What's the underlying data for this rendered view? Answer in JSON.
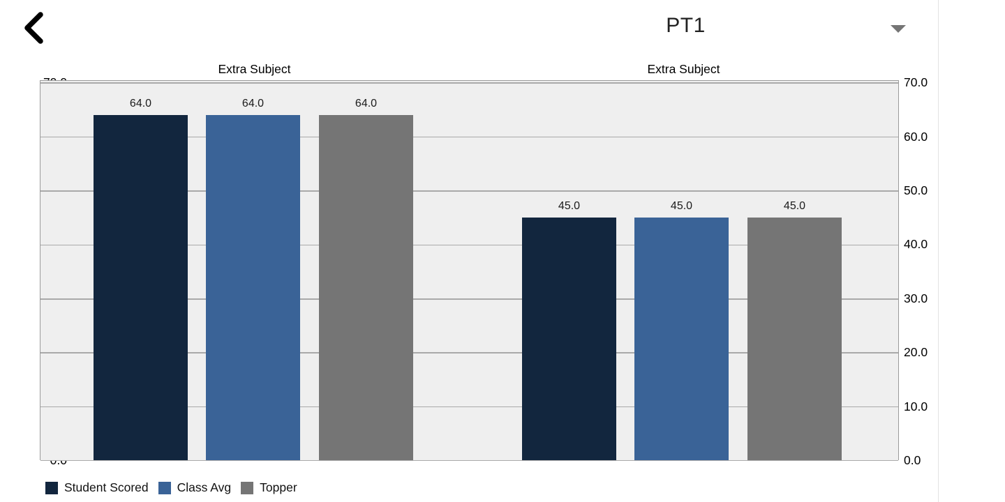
{
  "header": {
    "back_button": "back",
    "exam_selector": {
      "value": "PT1"
    }
  },
  "axis": {
    "ylim": [
      0,
      70.4
    ],
    "yticks": [
      {
        "value": 70,
        "label": "70.0"
      },
      {
        "value": 60,
        "label": "60.0"
      },
      {
        "value": 50,
        "label": "50.0"
      },
      {
        "value": 40,
        "label": "40.0"
      },
      {
        "value": 30,
        "label": "30.0"
      },
      {
        "value": 20,
        "label": "20.0"
      },
      {
        "value": 10,
        "label": "10.0"
      },
      {
        "value": 0,
        "label": "0.0"
      }
    ]
  },
  "chart_data": [
    {
      "type": "bar",
      "title": "Extra Subject",
      "categories": [
        "Student Scored",
        "Class Avg",
        "Topper"
      ],
      "values": [
        64.0,
        64.0,
        64.0
      ],
      "value_labels": [
        "64.0",
        "64.0",
        "64.0"
      ],
      "colors": [
        "#12263e",
        "#3a6397",
        "#757575"
      ],
      "xlabel": "",
      "ylabel": "",
      "ylim": [
        0,
        70.4
      ],
      "grid": true,
      "legend_position": "bottom-left"
    },
    {
      "type": "bar",
      "title": "Extra Subject",
      "categories": [
        "Student Scored",
        "Class Avg",
        "Topper"
      ],
      "values": [
        45.0,
        45.0,
        45.0
      ],
      "value_labels": [
        "45.0",
        "45.0",
        "45.0"
      ],
      "colors": [
        "#12263e",
        "#3a6397",
        "#757575"
      ],
      "xlabel": "",
      "ylabel": "",
      "ylim": [
        0,
        70.4
      ],
      "grid": true,
      "legend_position": "bottom-left"
    }
  ],
  "legend": {
    "items": [
      {
        "label": "Student Scored",
        "color": "#12263e"
      },
      {
        "label": "Class Avg",
        "color": "#3a6397"
      },
      {
        "label": "Topper",
        "color": "#757575"
      }
    ]
  },
  "nav_rail": {
    "back": "back",
    "home": "home",
    "recents": "recent apps"
  }
}
